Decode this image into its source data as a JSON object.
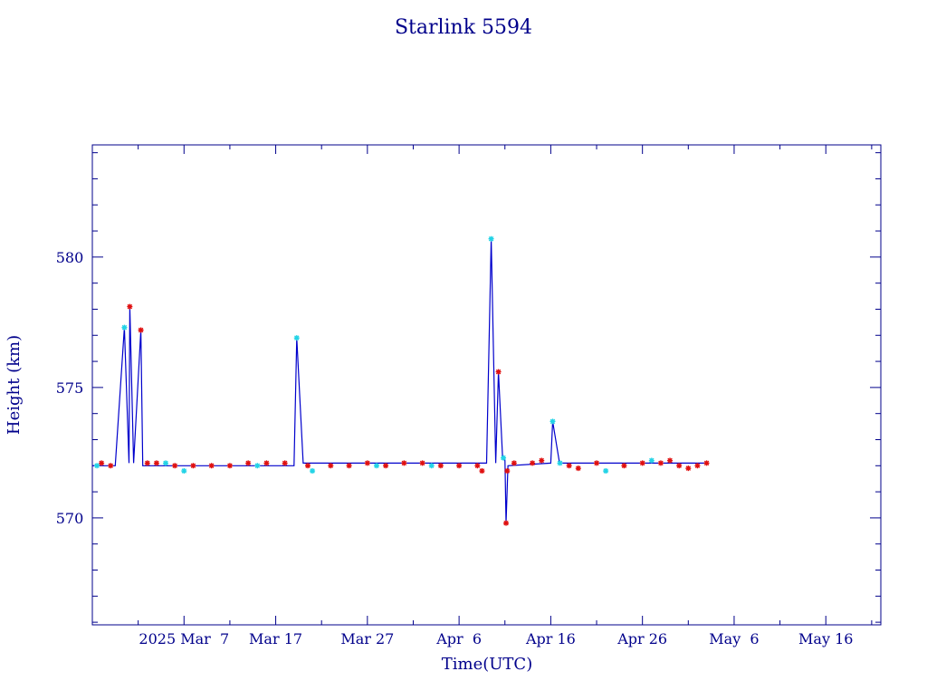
{
  "chart_data": {
    "type": "scatter",
    "title": "Starlink 5594",
    "xlabel": "Time(UTC)",
    "ylabel": "Height (km)",
    "x_range": [
      "2025-02-23",
      "2025-05-20"
    ],
    "ylim": [
      565.9,
      584.3
    ],
    "y_ticks": [
      {
        "value": 570,
        "label": "570"
      },
      {
        "value": 575,
        "label": "575"
      },
      {
        "value": 580,
        "label": "580"
      }
    ],
    "x_ticks": [
      {
        "value": "2025-03-05",
        "label": "2025 Mar  7"
      },
      {
        "value": "2025-03-15",
        "label": "Mar 17"
      },
      {
        "value": "2025-03-25",
        "label": "Mar 27"
      },
      {
        "value": "2025-04-04",
        "label": "Apr  6"
      },
      {
        "value": "2025-04-14",
        "label": "Apr 16"
      },
      {
        "value": "2025-04-24",
        "label": "Apr 26"
      },
      {
        "value": "2025-05-04",
        "label": "May  6"
      },
      {
        "value": "2025-05-14",
        "label": "May 16"
      }
    ],
    "grid": false,
    "legend": "none",
    "colors": {
      "line": "#0000cc",
      "marker_a": "#e01010",
      "marker_b": "#22d3e6",
      "frame": "#00008b"
    },
    "line_points": [
      [
        "2025-02-23T00:00",
        572.0
      ],
      [
        "2025-02-25T12:00",
        572.0
      ],
      [
        "2025-02-26T12:00",
        577.3
      ],
      [
        "2025-02-27T00:00",
        572.1
      ],
      [
        "2025-02-27T02:00",
        578.1
      ],
      [
        "2025-02-27T12:00",
        572.1
      ],
      [
        "2025-02-28T07:00",
        577.2
      ],
      [
        "2025-02-28T12:00",
        572.0
      ],
      [
        "2025-03-17T00:00",
        572.0
      ],
      [
        "2025-03-17T07:00",
        576.9
      ],
      [
        "2025-03-18T00:00",
        572.1
      ],
      [
        "2025-04-07T00:00",
        572.1
      ],
      [
        "2025-04-07T12:00",
        580.7
      ],
      [
        "2025-04-08T00:00",
        572.1
      ],
      [
        "2025-04-08T07:00",
        575.6
      ],
      [
        "2025-04-08T18:00",
        572.3
      ],
      [
        "2025-04-09T00:00",
        572.2
      ],
      [
        "2025-04-09T03:00",
        569.8
      ],
      [
        "2025-04-09T08:00",
        572.0
      ],
      [
        "2025-04-14T00:00",
        572.1
      ],
      [
        "2025-04-14T05:00",
        573.7
      ],
      [
        "2025-04-14T23:00",
        572.1
      ],
      [
        "2025-04-30T00:00",
        572.1
      ],
      [
        "2025-05-01T02:00",
        572.1
      ]
    ],
    "series": [
      {
        "marker": "red",
        "points": [
          [
            "2025-02-24T00:00",
            572.1
          ],
          [
            "2025-02-25T00:00",
            572.0
          ],
          [
            "2025-02-27T02:00",
            578.1
          ],
          [
            "2025-02-28T07:00",
            577.2
          ],
          [
            "2025-03-01T00:00",
            572.1
          ],
          [
            "2025-03-02T00:00",
            572.1
          ],
          [
            "2025-03-04T00:00",
            572.0
          ],
          [
            "2025-03-06T00:00",
            572.0
          ],
          [
            "2025-03-08T00:00",
            572.0
          ],
          [
            "2025-03-10T00:00",
            572.0
          ],
          [
            "2025-03-12T00:00",
            572.1
          ],
          [
            "2025-03-14T00:00",
            572.1
          ],
          [
            "2025-03-16T00:00",
            572.1
          ],
          [
            "2025-03-18T12:00",
            572.0
          ],
          [
            "2025-03-21T00:00",
            572.0
          ],
          [
            "2025-03-23T00:00",
            572.0
          ],
          [
            "2025-03-25T00:00",
            572.1
          ],
          [
            "2025-03-27T00:00",
            572.0
          ],
          [
            "2025-03-29T00:00",
            572.1
          ],
          [
            "2025-03-31T00:00",
            572.1
          ],
          [
            "2025-04-02T00:00",
            572.0
          ],
          [
            "2025-04-04T00:00",
            572.0
          ],
          [
            "2025-04-06T00:00",
            572.0
          ],
          [
            "2025-04-06T12:00",
            571.8
          ],
          [
            "2025-04-08T07:00",
            575.6
          ],
          [
            "2025-04-09T03:00",
            569.8
          ],
          [
            "2025-04-09T06:00",
            571.8
          ],
          [
            "2025-04-10T00:00",
            572.1
          ],
          [
            "2025-04-12T00:00",
            572.1
          ],
          [
            "2025-04-13T00:00",
            572.2
          ],
          [
            "2025-04-16T00:00",
            572.0
          ],
          [
            "2025-04-17T00:00",
            571.9
          ],
          [
            "2025-04-19T00:00",
            572.1
          ],
          [
            "2025-04-22T00:00",
            572.0
          ],
          [
            "2025-04-24T00:00",
            572.1
          ],
          [
            "2025-04-26T00:00",
            572.1
          ],
          [
            "2025-04-27T00:00",
            572.2
          ],
          [
            "2025-04-28T00:00",
            572.0
          ],
          [
            "2025-04-29T00:00",
            571.9
          ],
          [
            "2025-04-30T00:00",
            572.0
          ],
          [
            "2025-05-01T00:00",
            572.1
          ]
        ]
      },
      {
        "marker": "cyan",
        "points": [
          [
            "2025-02-23T12:00",
            572.0
          ],
          [
            "2025-02-26T12:00",
            577.3
          ],
          [
            "2025-03-03T00:00",
            572.1
          ],
          [
            "2025-03-05T00:00",
            571.8
          ],
          [
            "2025-03-13T00:00",
            572.0
          ],
          [
            "2025-03-17T07:00",
            576.9
          ],
          [
            "2025-03-19T00:00",
            571.8
          ],
          [
            "2025-03-26T00:00",
            572.0
          ],
          [
            "2025-04-01T00:00",
            572.0
          ],
          [
            "2025-04-07T12:00",
            580.7
          ],
          [
            "2025-04-08T20:00",
            572.3
          ],
          [
            "2025-04-14T05:00",
            573.7
          ],
          [
            "2025-04-15T00:00",
            572.1
          ],
          [
            "2025-04-20T00:00",
            571.8
          ],
          [
            "2025-04-25T00:00",
            572.2
          ]
        ]
      }
    ]
  }
}
